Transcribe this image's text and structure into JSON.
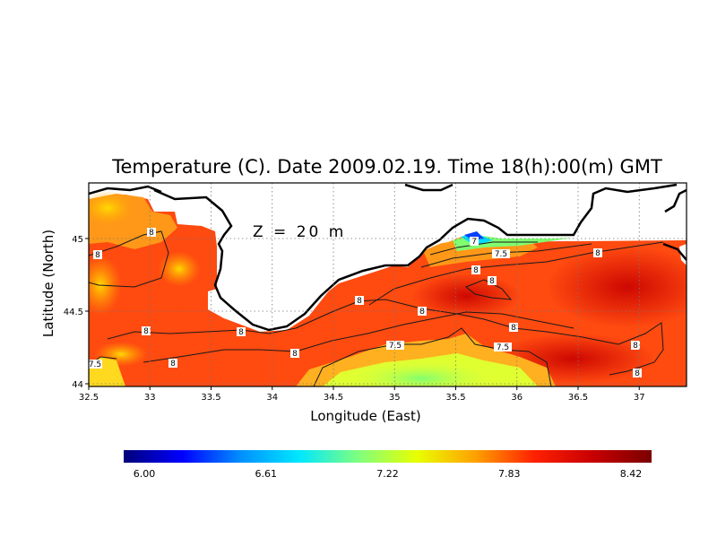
{
  "map": {
    "title": "Temperature (C). Date 2009.02.19. Time 18(h):00(m) GMT",
    "depth_label": "Z = 20 m",
    "xlabel": "Longitude (East)",
    "ylabel": "Latitude (North)",
    "x_ticks": [
      "32.5",
      "33",
      "33.5",
      "34",
      "34.5",
      "35",
      "35.5",
      "36",
      "36.5",
      "37"
    ],
    "y_ticks": [
      "44",
      "44.5",
      "45"
    ],
    "colorbar": {
      "min": 6.0,
      "max": 8.42,
      "tick_labels": [
        "6.00",
        "6.61",
        "7.22",
        "7.83",
        "8.42"
      ],
      "colors": [
        "#00007a",
        "#0000ff",
        "#0090ff",
        "#00e8ff",
        "#7fff7f",
        "#e8ff00",
        "#ffa000",
        "#ff2000",
        "#c80000",
        "#7a0000"
      ]
    },
    "contour_labels": [
      "8",
      "8",
      "8",
      "8",
      "8",
      "8",
      "8",
      "8",
      "8",
      "8",
      "8",
      "8",
      "8",
      "7.5",
      "7.5",
      "7.5",
      "7",
      "7.5"
    ]
  }
}
